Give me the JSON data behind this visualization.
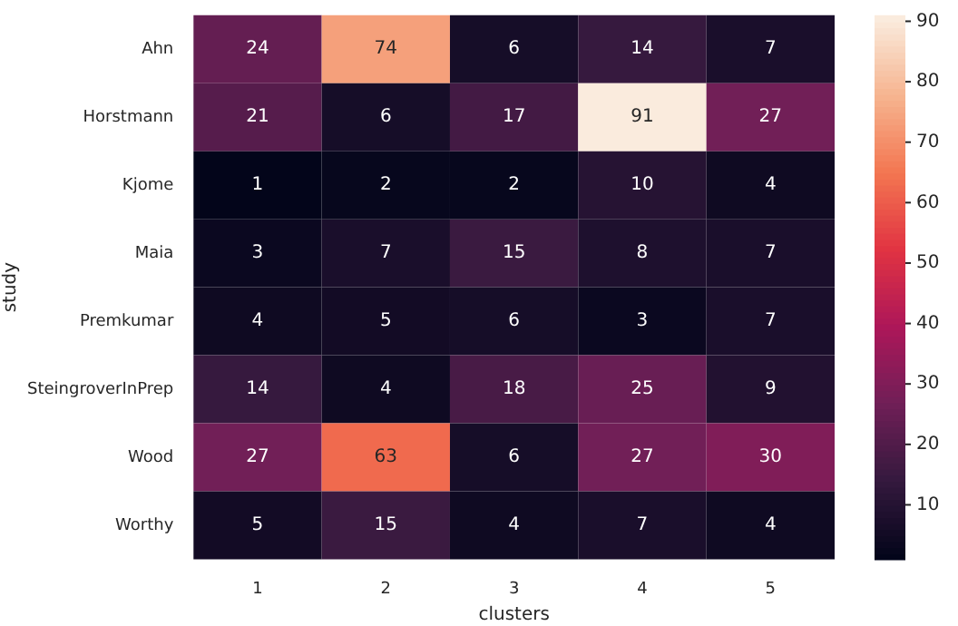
{
  "chart_data": {
    "type": "heatmap",
    "xlabel": "clusters",
    "ylabel": "study",
    "categories": [
      "1",
      "2",
      "3",
      "4",
      "5"
    ],
    "y_categories": [
      "Ahn",
      "Horstmann",
      "Kjome",
      "Maia",
      "Premkumar",
      "SteingroverInPrep",
      "Wood",
      "Worthy"
    ],
    "cells": [
      [
        24,
        74,
        6,
        14,
        7
      ],
      [
        21,
        6,
        17,
        91,
        27
      ],
      [
        1,
        2,
        2,
        10,
        4
      ],
      [
        3,
        7,
        15,
        8,
        7
      ],
      [
        4,
        5,
        6,
        3,
        7
      ],
      [
        14,
        4,
        18,
        25,
        9
      ],
      [
        27,
        63,
        6,
        27,
        30
      ],
      [
        5,
        15,
        4,
        7,
        4
      ]
    ],
    "data_labels": true,
    "clim": [
      1,
      91
    ],
    "cticks": [
      10,
      20,
      30,
      40,
      50,
      60,
      70,
      80,
      90
    ]
  }
}
